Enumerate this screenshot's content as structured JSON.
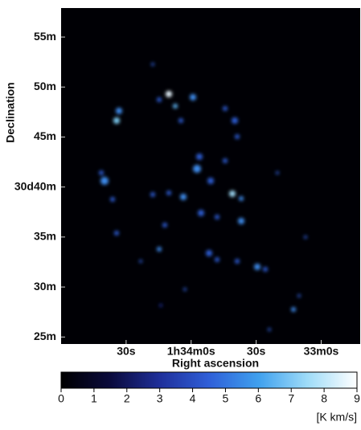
{
  "chart_data": {
    "type": "image",
    "xlabel": "Right ascension",
    "ylabel": "Declination",
    "xlim": [
      120,
      -18
    ],
    "xticks": [
      {
        "value": 90,
        "label": "30s"
      },
      {
        "value": 60,
        "label": "1h34m0s"
      },
      {
        "value": 30,
        "label": "30s"
      },
      {
        "value": 0,
        "label": "33m0s"
      }
    ],
    "ylim": [
      24.3,
      57.9
    ],
    "yticks": [
      {
        "value": 55,
        "label": "55m"
      },
      {
        "value": 50,
        "label": "50m"
      },
      {
        "value": 45,
        "label": "45m"
      },
      {
        "value": 40,
        "label": "30d40m"
      },
      {
        "value": 35,
        "label": "35m"
      },
      {
        "value": 30,
        "label": "30m"
      },
      {
        "value": 25,
        "label": "25m"
      }
    ],
    "colorbar": {
      "label": "[K km/s]",
      "lim": [
        0,
        9
      ],
      "ticks": [
        0,
        1,
        2,
        3,
        4,
        5,
        6,
        7,
        8,
        9
      ],
      "colors": [
        "#000000",
        "#0a0a3c",
        "#1f2f9a",
        "#2f5fd8",
        "#3fa0ee",
        "#9fdcf8",
        "#ffffff"
      ]
    }
  }
}
